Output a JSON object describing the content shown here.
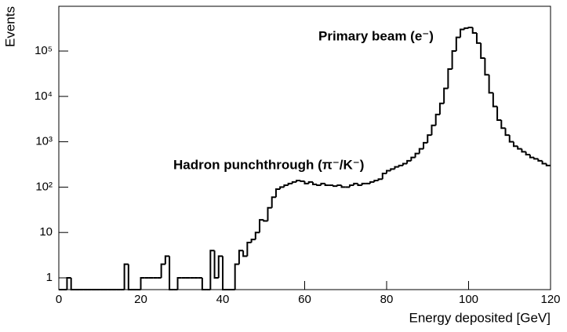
{
  "chart_data": {
    "type": "histogram",
    "x_label": "Energy deposited [GeV]",
    "y_label": "Events",
    "annotations": [
      "Primary beam (e⁻)",
      "Hadron punchthrough (π⁻/K⁻)"
    ],
    "log_y": true,
    "color": "#000000",
    "xlim": [
      0,
      120
    ],
    "xticks": [
      0,
      20,
      40,
      60,
      80,
      100,
      120
    ],
    "ylim": [
      0.55,
      970000
    ],
    "yticks": [
      1,
      10,
      {
        "value": 100,
        "label": "10²"
      },
      {
        "value": 1000,
        "label": "10³"
      },
      {
        "value": 10000,
        "label": "10⁴"
      },
      {
        "value": 100000,
        "label": "10⁵"
      }
    ],
    "bins": [
      0,
      1,
      2,
      3,
      4,
      5,
      6,
      7,
      8,
      9,
      10,
      11,
      12,
      13,
      14,
      15,
      16,
      17,
      18,
      19,
      20,
      21,
      22,
      23,
      24,
      25,
      26,
      27,
      28,
      29,
      30,
      31,
      32,
      33,
      34,
      35,
      36,
      37,
      38,
      39,
      40,
      41,
      42,
      43,
      44,
      45,
      46,
      47,
      48,
      49,
      50,
      51,
      52,
      53,
      54,
      55,
      56,
      57,
      58,
      59,
      60,
      61,
      62,
      63,
      64,
      65,
      66,
      67,
      68,
      69,
      70,
      71,
      72,
      73,
      74,
      75,
      76,
      77,
      78,
      79,
      80,
      81,
      82,
      83,
      84,
      85,
      86,
      87,
      88,
      89,
      90,
      91,
      92,
      93,
      94,
      95,
      96,
      97,
      98,
      99,
      100,
      101,
      102,
      103,
      104,
      105,
      106,
      107,
      108,
      109,
      110,
      111,
      112,
      113,
      114,
      115,
      116,
      117,
      118,
      119,
      120
    ],
    "values": [
      0,
      0,
      1,
      0,
      0,
      0,
      0,
      0,
      0,
      0,
      0,
      0,
      0,
      0,
      0,
      0,
      2,
      0,
      0,
      0,
      1,
      1,
      1,
      1,
      1,
      2,
      3,
      0,
      0,
      1,
      1,
      1,
      1,
      1,
      1,
      0,
      0,
      4,
      1,
      3,
      0,
      0,
      0,
      2,
      4,
      3,
      6,
      7,
      10,
      19,
      18,
      35,
      60,
      90,
      100,
      110,
      120,
      130,
      140,
      135,
      120,
      130,
      115,
      110,
      120,
      110,
      110,
      105,
      110,
      100,
      100,
      110,
      120,
      110,
      120,
      120,
      130,
      140,
      150,
      200,
      230,
      250,
      280,
      300,
      330,
      380,
      450,
      550,
      700,
      950,
      1400,
      2300,
      4000,
      7000,
      15000,
      40000,
      100000,
      200000,
      300000,
      320000,
      330000,
      250000,
      150000,
      70000,
      30000,
      12000,
      6000,
      3000,
      2000,
      1400,
      1000,
      800,
      700,
      600,
      520,
      450,
      420,
      380,
      330,
      300
    ]
  }
}
